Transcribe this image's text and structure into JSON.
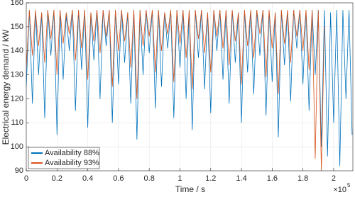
{
  "chart_data": {
    "type": "line",
    "xlabel": "Time / s",
    "ylabel": "Electrical energy demand / kW",
    "x_multiplier": "×10",
    "x_exponent": "5",
    "x": [
      0,
      0.02,
      0.04,
      0.06,
      0.08,
      0.1,
      0.12,
      0.14,
      0.16,
      0.18,
      0.2,
      0.22,
      0.24,
      0.26,
      0.28,
      0.3,
      0.32,
      0.34,
      0.36,
      0.38,
      0.4,
      0.42,
      0.44,
      0.46,
      0.48,
      0.5,
      0.52,
      0.54,
      0.56,
      0.58,
      0.6,
      0.62,
      0.64,
      0.66,
      0.68,
      0.7,
      0.72,
      0.74,
      0.76,
      0.78,
      0.8,
      0.82,
      0.84,
      0.86,
      0.88,
      0.9,
      0.92,
      0.94,
      0.96,
      0.98,
      1,
      1.02,
      1.04,
      1.06,
      1.08,
      1.1,
      1.12,
      1.14,
      1.16,
      1.18,
      1.2,
      1.22,
      1.24,
      1.26,
      1.28,
      1.3,
      1.32,
      1.34,
      1.36,
      1.38,
      1.4,
      1.42,
      1.44,
      1.46,
      1.48,
      1.5,
      1.52,
      1.54,
      1.56,
      1.58,
      1.6,
      1.62,
      1.64,
      1.66,
      1.68,
      1.7,
      1.72,
      1.74,
      1.76,
      1.78,
      1.8,
      1.82,
      1.84,
      1.86,
      1.88,
      1.9,
      1.92,
      1.94,
      1.96,
      1.98,
      2,
      2.02,
      2.04,
      2.06,
      2.08,
      2.1,
      2.12
    ],
    "series": [
      {
        "name": "Availability 88%",
        "color": "#0072bd",
        "values": [
          125,
          157,
          118,
          157,
          130,
          156,
          112,
          157,
          138,
          157,
          105,
          157,
          128,
          155,
          140,
          157,
          115,
          157,
          132,
          157,
          108,
          156,
          136,
          157,
          120,
          157,
          142,
          157,
          110,
          157,
          126,
          157,
          135,
          156,
          118,
          157,
          103,
          157,
          130,
          157,
          139,
          157,
          116,
          157,
          125,
          156,
          141,
          157,
          112,
          157,
          133,
          157,
          120,
          157,
          107,
          157,
          137,
          157,
          124,
          156,
          114,
          157,
          140,
          157,
          128,
          157,
          118,
          157,
          135,
          156,
          110,
          157,
          131,
          157,
          122,
          157,
          138,
          157,
          113,
          157,
          127,
          156,
          104,
          157,
          134,
          157,
          119,
          157,
          141,
          157,
          126,
          157,
          115,
          157,
          130,
          157,
          100,
          157,
          96,
          156,
          110,
          157,
          92,
          157,
          120,
          157,
          105
        ]
      },
      {
        "name": "Availability 93%",
        "color": "#d95319",
        "values": [
          133,
          157,
          138,
          157,
          142,
          156,
          135,
          157,
          145,
          157,
          130,
          157,
          143,
          156,
          147,
          157,
          136,
          157,
          141,
          157,
          128,
          156,
          144,
          157,
          139,
          157,
          146,
          157,
          125,
          157,
          140,
          157,
          144,
          156,
          133,
          157,
          120,
          157,
          142,
          157,
          146,
          157,
          131,
          157,
          140,
          156,
          147,
          157,
          127,
          157,
          143,
          157,
          137,
          157,
          124,
          157,
          145,
          157,
          139,
          156,
          131,
          157,
          146,
          157,
          141,
          157,
          134,
          157,
          144,
          156,
          126,
          157,
          142,
          157,
          137,
          157,
          147,
          157,
          129,
          157,
          141,
          156,
          122,
          157,
          143,
          157,
          135,
          157,
          146,
          157,
          140,
          157,
          132,
          157,
          95,
          157,
          90,
          150,
          null,
          null,
          null,
          null,
          null,
          null,
          null,
          null,
          null
        ]
      }
    ],
    "xlim": [
      0,
      2.125
    ],
    "xticks": [
      0,
      0.2,
      0.4,
      0.6,
      0.8,
      1,
      1.2,
      1.4,
      1.6,
      1.8,
      2
    ],
    "ylim": [
      90,
      160
    ],
    "yticks": [
      90,
      100,
      110,
      120,
      130,
      140,
      150,
      160
    ],
    "grid": true,
    "legend": "lower left"
  }
}
